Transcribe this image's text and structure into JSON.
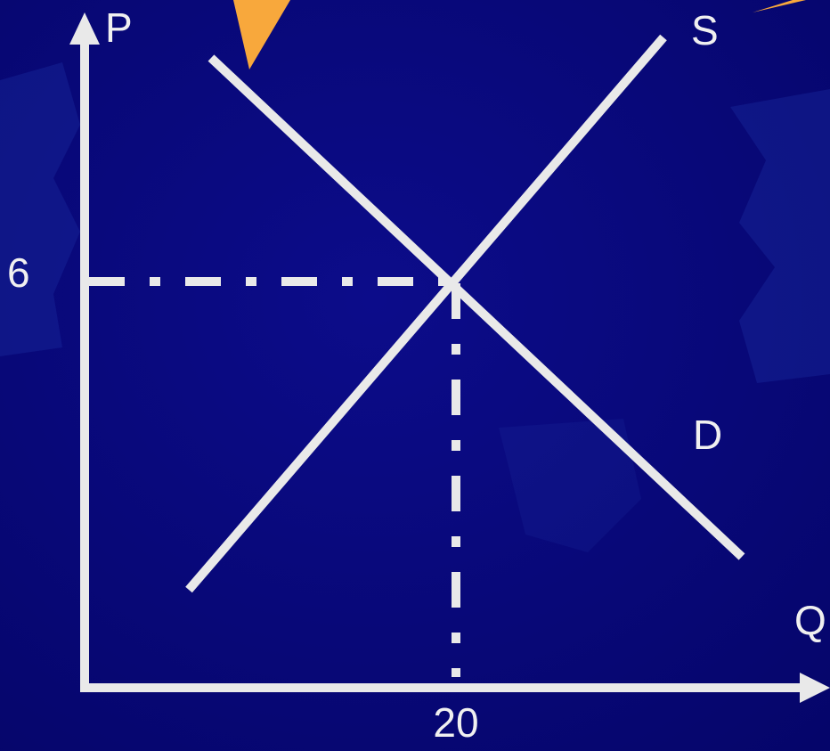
{
  "axes": {
    "y_label": "P",
    "x_label": "Q"
  },
  "curves": [
    {
      "label": "S"
    },
    {
      "label": "D"
    }
  ],
  "equilibrium": {
    "price": 6,
    "quantity": 20
  }
}
